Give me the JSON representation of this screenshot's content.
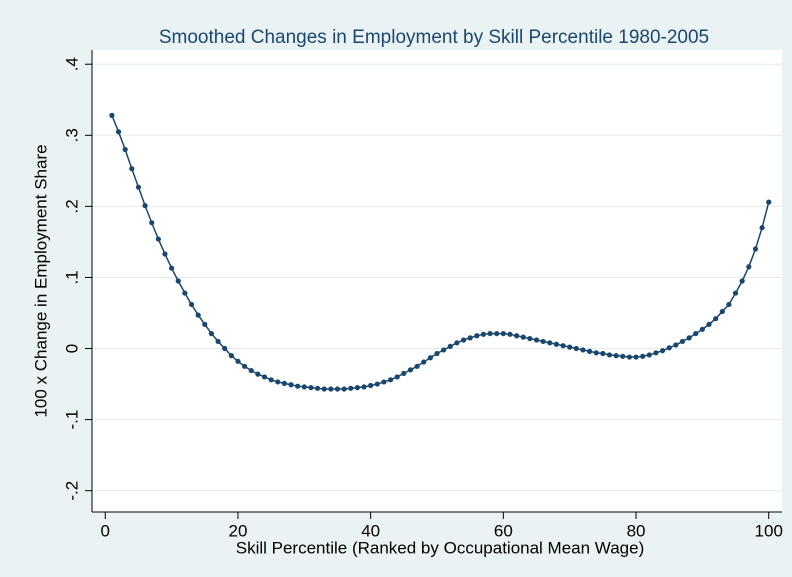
{
  "chart_data": {
    "type": "line",
    "title": "Smoothed Changes in Employment by Skill Percentile 1980-2005",
    "x_label": "Skill Percentile (Ranked by Occupational Mean Wage)",
    "y_label": "100 x Change in Employment Share",
    "color": "#1a476f",
    "grid": true,
    "x": [
      1,
      2,
      3,
      4,
      5,
      6,
      7,
      8,
      9,
      10,
      11,
      12,
      13,
      14,
      15,
      16,
      17,
      18,
      19,
      20,
      21,
      22,
      23,
      24,
      25,
      26,
      27,
      28,
      29,
      30,
      31,
      32,
      33,
      34,
      35,
      36,
      37,
      38,
      39,
      40,
      41,
      42,
      43,
      44,
      45,
      46,
      47,
      48,
      49,
      50,
      51,
      52,
      53,
      54,
      55,
      56,
      57,
      58,
      59,
      60,
      61,
      62,
      63,
      64,
      65,
      66,
      67,
      68,
      69,
      70,
      71,
      72,
      73,
      74,
      75,
      76,
      77,
      78,
      79,
      80,
      81,
      82,
      83,
      84,
      85,
      86,
      87,
      88,
      89,
      90,
      91,
      92,
      93,
      94,
      95,
      96,
      97,
      98,
      99,
      100
    ],
    "values": [
      0.328,
      0.305,
      0.28,
      0.253,
      0.227,
      0.201,
      0.177,
      0.154,
      0.133,
      0.113,
      0.095,
      0.078,
      0.062,
      0.047,
      0.034,
      0.021,
      0.01,
      0.0,
      -0.01,
      -0.018,
      -0.025,
      -0.031,
      -0.036,
      -0.04,
      -0.044,
      -0.047,
      -0.049,
      -0.051,
      -0.053,
      -0.054,
      -0.055,
      -0.056,
      -0.057,
      -0.057,
      -0.057,
      -0.057,
      -0.056,
      -0.055,
      -0.054,
      -0.052,
      -0.05,
      -0.047,
      -0.044,
      -0.04,
      -0.035,
      -0.03,
      -0.025,
      -0.019,
      -0.013,
      -0.007,
      -0.002,
      0.003,
      0.008,
      0.012,
      0.015,
      0.018,
      0.02,
      0.021,
      0.021,
      0.021,
      0.02,
      0.018,
      0.016,
      0.014,
      0.012,
      0.01,
      0.008,
      0.006,
      0.004,
      0.002,
      0.0,
      -0.002,
      -0.004,
      -0.006,
      -0.007,
      -0.009,
      -0.01,
      -0.011,
      -0.012,
      -0.012,
      -0.011,
      -0.009,
      -0.006,
      -0.003,
      0.001,
      0.005,
      0.01,
      0.015,
      0.021,
      0.027,
      0.034,
      0.042,
      0.052,
      0.062,
      0.078,
      0.095,
      0.115,
      0.14,
      0.17,
      0.206
    ],
    "xlim": [
      -2,
      102
    ],
    "ylim": [
      -0.23,
      0.42
    ],
    "xticks": [
      0,
      20,
      40,
      60,
      80,
      100
    ],
    "yticks": [
      {
        "value": -0.2,
        "label": "-.2"
      },
      {
        "value": -0.1,
        "label": "-.1"
      },
      0,
      {
        "value": 0.1,
        "label": ".1"
      },
      {
        "value": 0.2,
        "label": ".2"
      },
      {
        "value": 0.3,
        "label": ".3"
      },
      {
        "value": 0.4,
        "label": ".4"
      }
    ]
  }
}
